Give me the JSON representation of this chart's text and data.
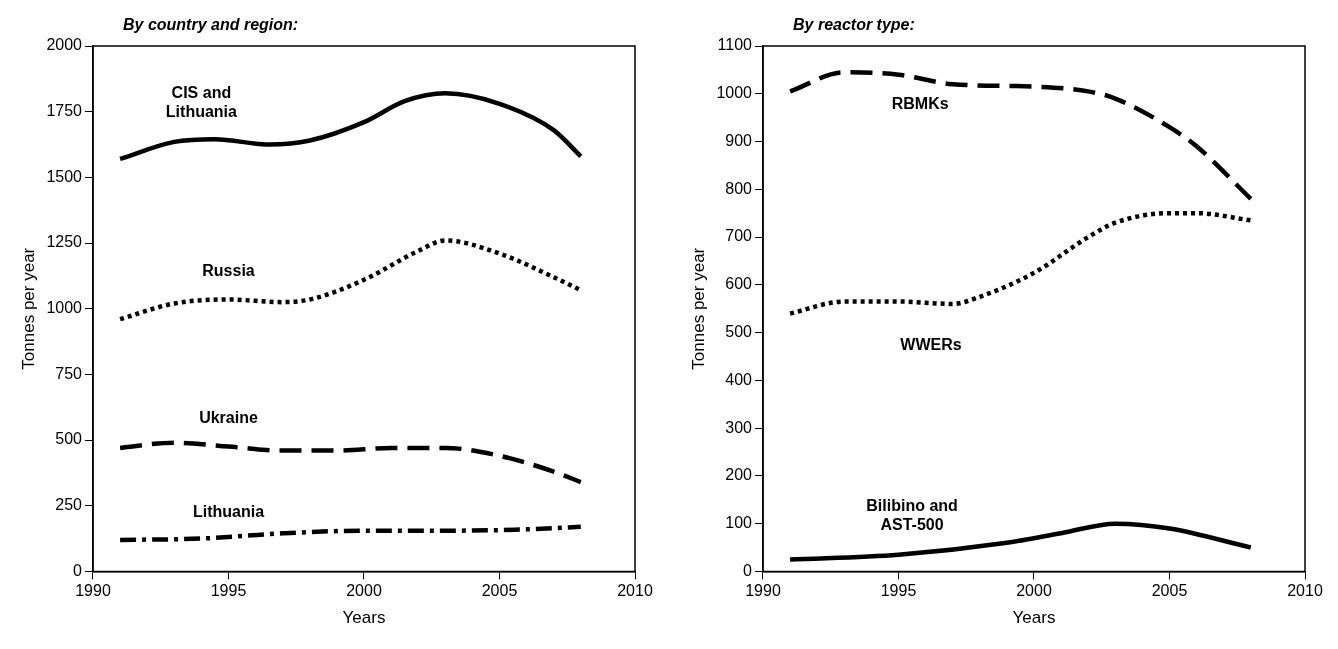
{
  "chart_data": [
    {
      "type": "line",
      "title": "By country and region:",
      "xlabel": "Years",
      "ylabel": "Tonnes per year",
      "xlim": [
        1990,
        2010
      ],
      "xticks": [
        1990,
        1995,
        2000,
        2005,
        2010
      ],
      "ylim": [
        0,
        2000
      ],
      "yticks": [
        0,
        250,
        500,
        750,
        1000,
        1250,
        1500,
        1750,
        2000
      ],
      "grid": false,
      "legend": false,
      "marker": "none",
      "series": [
        {
          "name": "CIS and Lithuania",
          "color": "#000000",
          "line_style": "solid",
          "x": [
            1991,
            1993,
            1994.5,
            1996.5,
            1998,
            2000,
            2001.5,
            2003,
            2005,
            2007,
            2008
          ],
          "values": [
            1570,
            1635,
            1645,
            1625,
            1640,
            1710,
            1790,
            1820,
            1780,
            1680,
            1580
          ]
        },
        {
          "name": "Russia",
          "color": "#000000",
          "line_style": "dotted",
          "x": [
            1991,
            1993,
            1995,
            1997,
            1998,
            2000,
            2002,
            2003,
            2005,
            2007,
            2008
          ],
          "values": [
            960,
            1020,
            1035,
            1025,
            1035,
            1110,
            1220,
            1260,
            1210,
            1120,
            1070
          ]
        },
        {
          "name": "Ukraine",
          "color": "#000000",
          "line_style": "dashed",
          "x": [
            1991,
            1993,
            1995,
            1997,
            1999,
            2001,
            2003,
            2005,
            2007,
            2008
          ],
          "values": [
            470,
            490,
            475,
            460,
            460,
            470,
            470,
            440,
            380,
            340
          ]
        },
        {
          "name": "Lithuania",
          "color": "#000000",
          "line_style": "dashdot",
          "x": [
            1991,
            1994,
            1997,
            2000,
            2003,
            2006,
            2008
          ],
          "values": [
            120,
            125,
            145,
            155,
            155,
            160,
            170
          ]
        }
      ]
    },
    {
      "type": "line",
      "title": "By reactor type:",
      "xlabel": "Years",
      "ylabel": "Tonnes per year",
      "xlim": [
        1990,
        2010
      ],
      "xticks": [
        1990,
        1995,
        2000,
        2005,
        2010
      ],
      "ylim": [
        0,
        1100
      ],
      "yticks": [
        0,
        100,
        200,
        300,
        400,
        500,
        600,
        700,
        800,
        900,
        1000,
        1100
      ],
      "grid": false,
      "legend": false,
      "marker": "none",
      "series": [
        {
          "name": "RBMKs",
          "color": "#000000",
          "line_style": "dashed",
          "x": [
            1991,
            1993,
            1995,
            1997,
            2000,
            2002,
            2003,
            2005,
            2006,
            2008
          ],
          "values": [
            1005,
            1045,
            1040,
            1020,
            1015,
            1005,
            990,
            930,
            890,
            780
          ]
        },
        {
          "name": "WWERs",
          "color": "#000000",
          "line_style": "dotted",
          "x": [
            1991,
            1993,
            1995,
            1997,
            1998,
            2000,
            2002,
            2003,
            2005,
            2006,
            2008
          ],
          "values": [
            540,
            565,
            565,
            560,
            575,
            625,
            700,
            730,
            750,
            750,
            735
          ]
        },
        {
          "name": "Bilibino and AST-500",
          "color": "#000000",
          "line_style": "solid",
          "x": [
            1991,
            1995,
            1999,
            2001,
            2003,
            2005,
            2008
          ],
          "values": [
            25,
            35,
            60,
            80,
            100,
            90,
            50
          ]
        }
      ]
    }
  ]
}
